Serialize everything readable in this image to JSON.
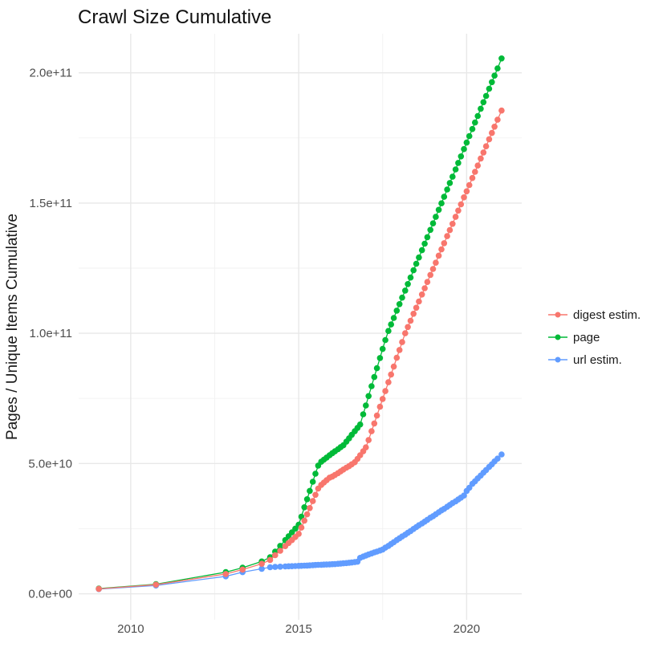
{
  "colors": {
    "background": "#FFFFFF",
    "title_text": "#111111",
    "axis_title_text": "#1A1A1A",
    "tick_text": "#4D4D4D",
    "grid_major": "#E8E8E8",
    "grid_minor": "#F2F2F2",
    "digest_series": "#F8766D",
    "page_series": "#00BA38",
    "url_series": "#619CFF"
  },
  "chart_data": {
    "type": "scatter",
    "title": "Crawl Size Cumulative",
    "xlabel": "",
    "ylabel": "Pages / Unique Items Cumulative",
    "grid": true,
    "legend_position": "right-center",
    "value_note": "series values stored in billions; actual item counts = value * 1e9",
    "xlim": [
      2008.45,
      2021.64
    ],
    "ylim_billions": [
      -10,
      215
    ],
    "x_major_ticks": [
      {
        "value": 2010,
        "label": "2010"
      },
      {
        "value": 2015,
        "label": "2015"
      },
      {
        "value": 2020,
        "label": "2020"
      }
    ],
    "x_minor_ticks": [
      2012.5,
      2017.5
    ],
    "y_major_ticks": [
      {
        "value": 0,
        "label": "0.0e+00"
      },
      {
        "value": 50,
        "label": "5.0e+10"
      },
      {
        "value": 100,
        "label": "1.0e+11"
      },
      {
        "value": 150,
        "label": "1.5e+11"
      },
      {
        "value": 200,
        "label": "2.0e+11"
      }
    ],
    "y_minor_ticks": [
      25,
      75,
      125,
      175
    ],
    "x": [
      2009.05,
      2010.75,
      2012.83,
      2013.33,
      2013.9,
      2014.15,
      2014.3,
      2014.45,
      2014.6,
      2014.7,
      2014.8,
      2014.9,
      2015.0,
      2015.08,
      2015.17,
      2015.25,
      2015.33,
      2015.42,
      2015.5,
      2015.58,
      2015.67,
      2015.75,
      2015.83,
      2015.92,
      2016.0,
      2016.08,
      2016.17,
      2016.25,
      2016.33,
      2016.42,
      2016.5,
      2016.58,
      2016.67,
      2016.75,
      2016.83,
      2016.92,
      2017.0,
      2017.08,
      2017.17,
      2017.25,
      2017.33,
      2017.42,
      2017.5,
      2017.58,
      2017.67,
      2017.75,
      2017.83,
      2017.92,
      2018.0,
      2018.08,
      2018.17,
      2018.25,
      2018.33,
      2018.42,
      2018.5,
      2018.58,
      2018.67,
      2018.75,
      2018.83,
      2018.92,
      2019.0,
      2019.08,
      2019.17,
      2019.25,
      2019.33,
      2019.42,
      2019.5,
      2019.58,
      2019.67,
      2019.75,
      2019.83,
      2019.92,
      2020.0,
      2020.08,
      2020.17,
      2020.25,
      2020.33,
      2020.42,
      2020.5,
      2020.58,
      2020.67,
      2020.75,
      2020.83,
      2020.92,
      2021.04
    ],
    "series": [
      {
        "name": "digest estim.",
        "color": "#F8766D",
        "values_billions": [
          1.9,
          3.5,
          7.6,
          9.3,
          11.5,
          13.0,
          14.8,
          16.5,
          18.3,
          19.5,
          20.6,
          21.8,
          23.0,
          25.4,
          28.1,
          30.5,
          32.9,
          35.6,
          38.0,
          40.4,
          41.8,
          42.7,
          43.6,
          44.6,
          45.0,
          45.6,
          46.3,
          47.0,
          47.7,
          48.4,
          49.0,
          49.7,
          50.5,
          51.8,
          53.2,
          54.7,
          56.2,
          59.0,
          62.4,
          65.4,
          68.4,
          71.8,
          74.8,
          77.8,
          81.2,
          84.2,
          87.2,
          90.6,
          93.6,
          96.6,
          100.0,
          102.4,
          104.8,
          107.5,
          109.8,
          112.2,
          114.9,
          117.3,
          119.7,
          122.4,
          124.7,
          127.1,
          129.8,
          132.2,
          134.6,
          137.3,
          139.6,
          142.0,
          144.7,
          147.1,
          149.5,
          152.2,
          154.5,
          156.9,
          159.6,
          162.0,
          164.4,
          167.1,
          169.4,
          171.8,
          174.5,
          176.9,
          179.3,
          182.0,
          185.5
        ]
      },
      {
        "name": "page",
        "color": "#00BA38",
        "values_billions": [
          2.0,
          3.7,
          8.3,
          10.0,
          12.4,
          14.0,
          16.2,
          18.4,
          20.6,
          22.1,
          23.6,
          25.0,
          26.5,
          29.6,
          33.2,
          36.3,
          39.5,
          43.0,
          46.1,
          49.2,
          50.7,
          51.5,
          52.3,
          53.2,
          54.0,
          54.7,
          55.5,
          56.3,
          57.0,
          58.4,
          59.7,
          61.0,
          62.4,
          63.7,
          65.0,
          68.9,
          72.3,
          75.9,
          79.7,
          83.2,
          86.6,
          90.5,
          94.0,
          97.4,
          100.9,
          103.4,
          105.9,
          108.7,
          111.2,
          113.7,
          116.4,
          118.9,
          121.4,
          124.2,
          126.7,
          129.1,
          131.9,
          134.4,
          136.9,
          139.7,
          142.2,
          144.7,
          147.4,
          149.9,
          152.4,
          155.2,
          157.7,
          160.1,
          162.9,
          165.4,
          167.9,
          170.7,
          173.2,
          175.7,
          178.4,
          180.9,
          183.4,
          186.2,
          188.7,
          191.1,
          193.9,
          196.4,
          198.9,
          201.7,
          205.5
        ]
      },
      {
        "name": "url estim.",
        "color": "#619CFF",
        "values_billions": [
          1.8,
          3.2,
          6.7,
          8.3,
          9.6,
          10.2,
          10.3,
          10.4,
          10.5,
          10.55,
          10.6,
          10.65,
          10.7,
          10.75,
          10.8,
          10.85,
          10.9,
          11.0,
          11.05,
          11.1,
          11.15,
          11.2,
          11.25,
          11.3,
          11.35,
          11.4,
          11.5,
          11.6,
          11.7,
          11.8,
          11.9,
          12.0,
          12.15,
          12.3,
          13.8,
          14.3,
          14.7,
          15.1,
          15.5,
          15.9,
          16.2,
          16.6,
          17.0,
          17.7,
          18.4,
          19.1,
          19.8,
          20.6,
          21.3,
          22.0,
          22.7,
          23.4,
          24.1,
          24.9,
          25.6,
          26.3,
          27.0,
          27.7,
          28.4,
          29.2,
          29.8,
          30.5,
          31.3,
          32.0,
          32.6,
          33.4,
          34.1,
          34.8,
          35.5,
          36.2,
          36.9,
          37.7,
          39.5,
          40.7,
          42.2,
          43.2,
          44.3,
          45.4,
          46.5,
          47.5,
          48.7,
          49.7,
          50.8,
          51.9,
          53.5
        ]
      }
    ]
  }
}
